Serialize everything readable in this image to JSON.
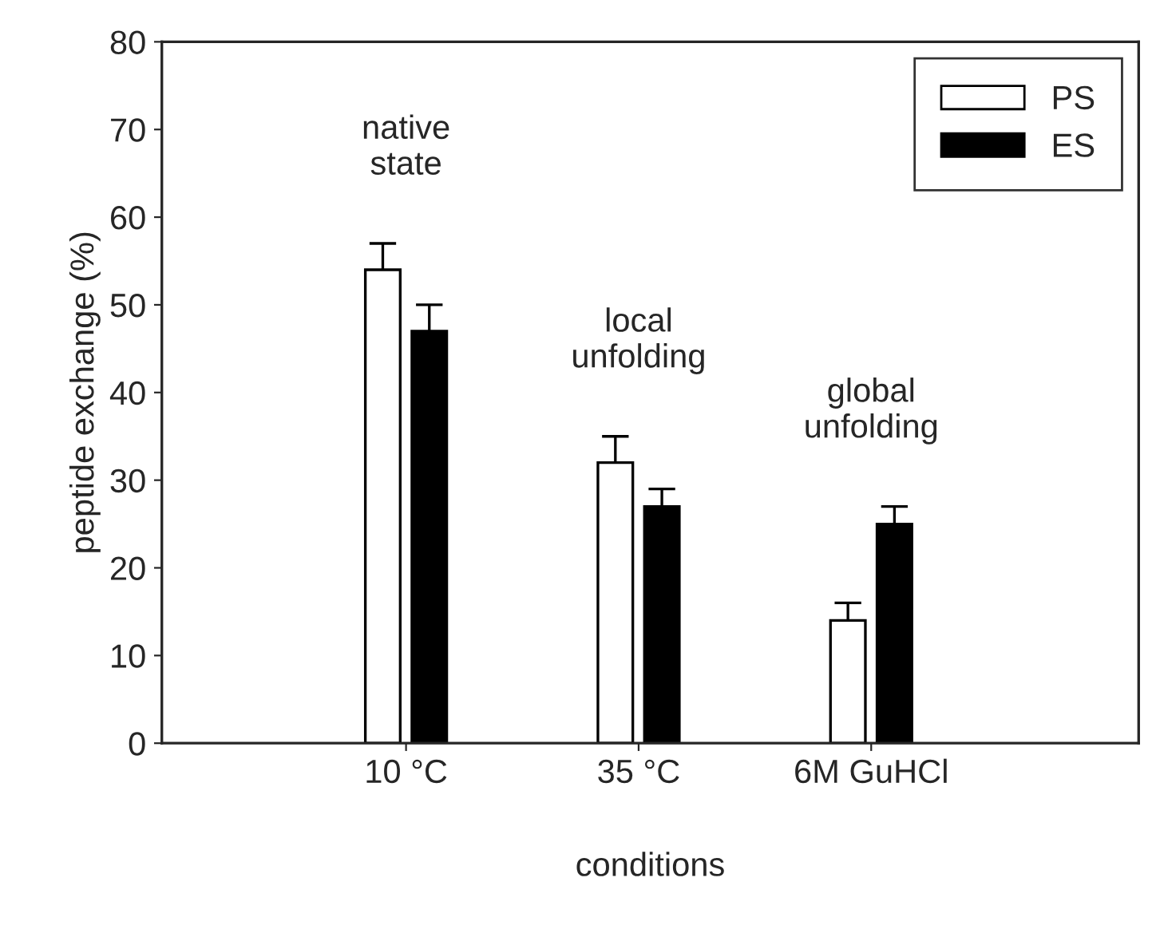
{
  "chart_data": {
    "type": "bar",
    "xlabel": "conditions",
    "ylabel": "peptide exchange (%)",
    "categories": [
      "10 °C",
      "35 °C",
      "6M GuHCl"
    ],
    "series": [
      {
        "name": "PS",
        "color": "#ffffff",
        "values": [
          54,
          32,
          14
        ],
        "errors": [
          3,
          3,
          2
        ]
      },
      {
        "name": "ES",
        "color": "#000000",
        "values": [
          47,
          27,
          25
        ],
        "errors": [
          3,
          2,
          2
        ]
      }
    ],
    "ylim": [
      0,
      80
    ],
    "yticks": [
      0,
      10,
      20,
      30,
      40,
      50,
      60,
      70,
      80
    ],
    "grid": false,
    "legend": "top right",
    "annotations": [
      "native\nstate",
      "local\nunfolding",
      "global\nunfolding"
    ]
  }
}
